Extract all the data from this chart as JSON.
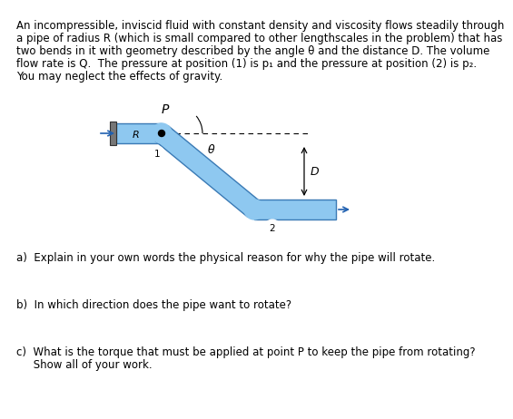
{
  "pipe_color": "#8ec8f0",
  "pipe_edge_color": "#3a7ab5",
  "bg_color": "#ffffff",
  "text_color": "#000000",
  "font_size": 8.5,
  "diagram_text": {
    "P": "P",
    "R": "R",
    "theta": "θ",
    "D": "D",
    "num1": "1",
    "num2": "2"
  },
  "para_text": "An incompressible, inviscid fluid with constant density and viscosity flows steadily through a pipe of radius R (which is small compared to other lengthscales in the problem) that has two bends in it with geometry described by the angle θ and the distance D. The volume flow rate is Q.  The pressure at position (1) is p₁ and the pressure at position (2) is p₂. You may neglect the effects of gravity.",
  "question_a": "a)  Explain in your own words the physical reason for why the pipe will rotate.",
  "question_b": "b)  In which direction does the pipe want to rotate?",
  "question_c": "c)  What is the torque that must be applied at point P to keep the pipe from rotating?\n     Show all of your work."
}
